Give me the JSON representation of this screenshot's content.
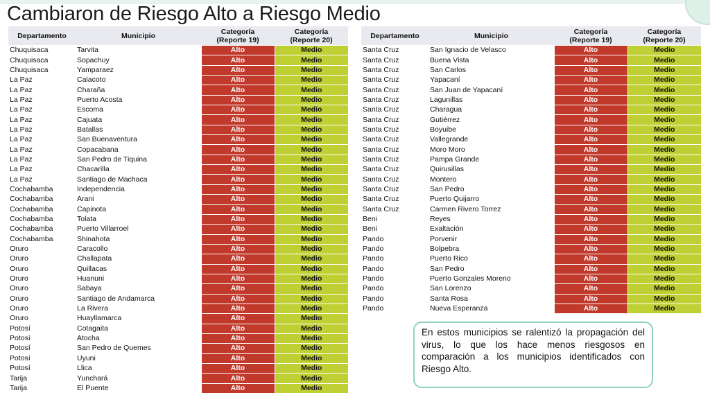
{
  "title": "Cambiaron de Riesgo Alto a Riesgo Medio",
  "headers": {
    "departamento": "Departamento",
    "municipio": "Municipio",
    "cat19_line1": "Categoría",
    "cat19_line2": "(Reporte 19)",
    "cat20_line1": "Categoría",
    "cat20_line2": "(Reporte 20)"
  },
  "colors": {
    "alto": "#c0392b",
    "medio": "#bfd034",
    "header_bg": "#e8eaf0",
    "note_border": "#8fd3b4"
  },
  "left_rows": [
    {
      "dep": "Chuquisaca",
      "mun": "Tarvita",
      "r19": "Alto",
      "r20": "Medio"
    },
    {
      "dep": "Chuquisaca",
      "mun": "Sopachuy",
      "r19": "Alto",
      "r20": "Medio"
    },
    {
      "dep": "Chuquisaca",
      "mun": "Yamparaez",
      "r19": "Alto",
      "r20": "Medio"
    },
    {
      "dep": "La Paz",
      "mun": "Calacoto",
      "r19": "Alto",
      "r20": "Medio"
    },
    {
      "dep": "La Paz",
      "mun": "Charaña",
      "r19": "Alto",
      "r20": "Medio"
    },
    {
      "dep": "La Paz",
      "mun": "Puerto Acosta",
      "r19": "Alto",
      "r20": "Medio"
    },
    {
      "dep": "La Paz",
      "mun": "Escoma",
      "r19": "Alto",
      "r20": "Medio"
    },
    {
      "dep": "La Paz",
      "mun": "Cajuata",
      "r19": "Alto",
      "r20": "Medio"
    },
    {
      "dep": "La Paz",
      "mun": "Batallas",
      "r19": "Alto",
      "r20": "Medio"
    },
    {
      "dep": "La Paz",
      "mun": "San Buenaventura",
      "r19": "Alto",
      "r20": "Medio"
    },
    {
      "dep": "La Paz",
      "mun": "Copacabana",
      "r19": "Alto",
      "r20": "Medio"
    },
    {
      "dep": "La Paz",
      "mun": "San Pedro de Tiquina",
      "r19": "Alto",
      "r20": "Medio"
    },
    {
      "dep": "La Paz",
      "mun": "Chacarilla",
      "r19": "Alto",
      "r20": "Medio"
    },
    {
      "dep": "La Paz",
      "mun": "Santiago de Machaca",
      "r19": "Alto",
      "r20": "Medio"
    },
    {
      "dep": "Cochabamba",
      "mun": "Independencia",
      "r19": "Alto",
      "r20": "Medio"
    },
    {
      "dep": "Cochabamba",
      "mun": "Arani",
      "r19": "Alto",
      "r20": "Medio"
    },
    {
      "dep": "Cochabamba",
      "mun": "Capinota",
      "r19": "Alto",
      "r20": "Medio"
    },
    {
      "dep": "Cochabamba",
      "mun": "Tolata",
      "r19": "Alto",
      "r20": "Medio"
    },
    {
      "dep": "Cochabamba",
      "mun": "Puerto Villarroel",
      "r19": "Alto",
      "r20": "Medio"
    },
    {
      "dep": "Cochabamba",
      "mun": "Shinahota",
      "r19": "Alto",
      "r20": "Medio"
    },
    {
      "dep": "Oruro",
      "mun": "Caracollo",
      "r19": "Alto",
      "r20": "Medio"
    },
    {
      "dep": "Oruro",
      "mun": "Challapata",
      "r19": "Alto",
      "r20": "Medio"
    },
    {
      "dep": "Oruro",
      "mun": "Quillacas",
      "r19": "Alto",
      "r20": "Medio"
    },
    {
      "dep": "Oruro",
      "mun": "Huanuni",
      "r19": "Alto",
      "r20": "Medio"
    },
    {
      "dep": "Oruro",
      "mun": "Sabaya",
      "r19": "Alto",
      "r20": "Medio"
    },
    {
      "dep": "Oruro",
      "mun": "Santiago de Andamarca",
      "r19": "Alto",
      "r20": "Medio"
    },
    {
      "dep": "Oruro",
      "mun": "La Rivera",
      "r19": "Alto",
      "r20": "Medio"
    },
    {
      "dep": "Oruro",
      "mun": "Huayllamarca",
      "r19": "Alto",
      "r20": "Medio"
    },
    {
      "dep": "Potosí",
      "mun": "Cotagaita",
      "r19": "Alto",
      "r20": "Medio"
    },
    {
      "dep": "Potosí",
      "mun": "Atocha",
      "r19": "Alto",
      "r20": "Medio"
    },
    {
      "dep": "Potosí",
      "mun": "San Pedro de Quemes",
      "r19": "Alto",
      "r20": "Medio"
    },
    {
      "dep": "Potosí",
      "mun": "Uyuni",
      "r19": "Alto",
      "r20": "Medio"
    },
    {
      "dep": "Potosí",
      "mun": "Llica",
      "r19": "Alto",
      "r20": "Medio"
    },
    {
      "dep": "Tarija",
      "mun": "Yunchará",
      "r19": "Alto",
      "r20": "Medio"
    },
    {
      "dep": "Tarija",
      "mun": "El Puente",
      "r19": "Alto",
      "r20": "Medio"
    }
  ],
  "right_rows": [
    {
      "dep": "Santa Cruz",
      "mun": "San Ignacio de Velasco",
      "r19": "Alto",
      "r20": "Medio"
    },
    {
      "dep": "Santa Cruz",
      "mun": "Buena Vista",
      "r19": "Alto",
      "r20": "Medio"
    },
    {
      "dep": "Santa Cruz",
      "mun": "San Carlos",
      "r19": "Alto",
      "r20": "Medio"
    },
    {
      "dep": "Santa Cruz",
      "mun": "Yapacaní",
      "r19": "Alto",
      "r20": "Medio"
    },
    {
      "dep": "Santa Cruz",
      "mun": "San Juan de Yapacaní",
      "r19": "Alto",
      "r20": "Medio"
    },
    {
      "dep": "Santa Cruz",
      "mun": "Lagunillas",
      "r19": "Alto",
      "r20": "Medio"
    },
    {
      "dep": "Santa Cruz",
      "mun": "Charagua",
      "r19": "Alto",
      "r20": "Medio"
    },
    {
      "dep": "Santa Cruz",
      "mun": "Gutiérrez",
      "r19": "Alto",
      "r20": "Medio"
    },
    {
      "dep": "Santa Cruz",
      "mun": "Boyuibe",
      "r19": "Alto",
      "r20": "Medio"
    },
    {
      "dep": "Santa Cruz",
      "mun": "Vallegrande",
      "r19": "Alto",
      "r20": "Medio"
    },
    {
      "dep": "Santa Cruz",
      "mun": "Moro Moro",
      "r19": "Alto",
      "r20": "Medio"
    },
    {
      "dep": "Santa Cruz",
      "mun": "Pampa Grande",
      "r19": "Alto",
      "r20": "Medio"
    },
    {
      "dep": "Santa Cruz",
      "mun": "Quirusillas",
      "r19": "Alto",
      "r20": "Medio"
    },
    {
      "dep": "Santa Cruz",
      "mun": "Montero",
      "r19": "Alto",
      "r20": "Medio"
    },
    {
      "dep": "Santa Cruz",
      "mun": "San Pedro",
      "r19": "Alto",
      "r20": "Medio"
    },
    {
      "dep": "Santa Cruz",
      "mun": "Puerto Quijarro",
      "r19": "Alto",
      "r20": "Medio"
    },
    {
      "dep": "Santa Cruz",
      "mun": "Carmen Rivero Torrez",
      "r19": "Alto",
      "r20": "Medio"
    },
    {
      "dep": "Beni",
      "mun": "Reyes",
      "r19": "Alto",
      "r20": "Medio"
    },
    {
      "dep": "Beni",
      "mun": "Exaltación",
      "r19": "Alto",
      "r20": "Medio"
    },
    {
      "dep": "Pando",
      "mun": "Porvenir",
      "r19": "Alto",
      "r20": "Medio"
    },
    {
      "dep": "Pando",
      "mun": "Bolpebra",
      "r19": "Alto",
      "r20": "Medio"
    },
    {
      "dep": "Pando",
      "mun": "Puerto Rico",
      "r19": "Alto",
      "r20": "Medio"
    },
    {
      "dep": "Pando",
      "mun": "San Pedro",
      "r19": "Alto",
      "r20": "Medio"
    },
    {
      "dep": "Pando",
      "mun": "Puerto Gonzales Moreno",
      "r19": "Alto",
      "r20": "Medio"
    },
    {
      "dep": "Pando",
      "mun": "San Lorenzo",
      "r19": "Alto",
      "r20": "Medio"
    },
    {
      "dep": "Pando",
      "mun": "Santa Rosa",
      "r19": "Alto",
      "r20": "Medio"
    },
    {
      "dep": "Pando",
      "mun": "Nueva Esperanza",
      "r19": "Alto",
      "r20": "Medio"
    }
  ],
  "note": "En estos municipios se ralentizó la propagación del virus, lo que los hace menos riesgosos en comparación a los municipios identificados con Riesgo Alto."
}
